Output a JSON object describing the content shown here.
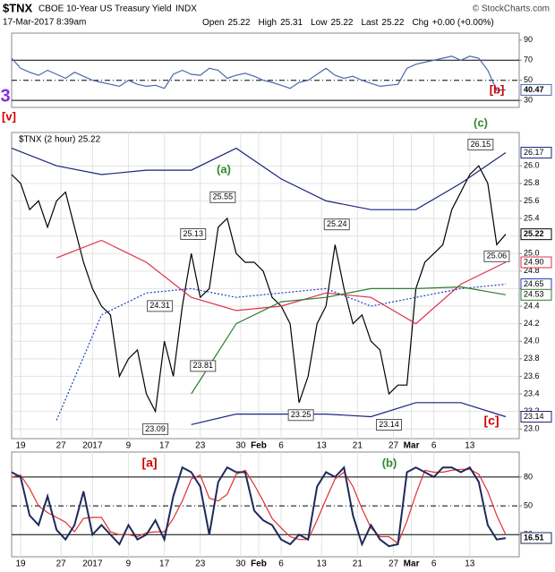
{
  "header": {
    "symbol": "$TNX",
    "name": "CBOE 10-Year US Treasury Yield",
    "exchange": "INDX",
    "source": "© StockCharts.com",
    "date": "17-Mar-2017 8:39am",
    "quote": [
      {
        "label": "Open",
        "value": 25.22
      },
      {
        "label": "High",
        "value": 25.31
      },
      {
        "label": "Low",
        "value": 25.22
      },
      {
        "label": "Last",
        "value": 25.22
      },
      {
        "label": "Chg",
        "value": "+0.00 (+0.00%)"
      }
    ]
  },
  "chart_data": [
    {
      "type": "line",
      "xlim": [
        0,
        113
      ],
      "ylim": [
        23,
        97
      ],
      "yticks": [
        30,
        50,
        70,
        90
      ],
      "levels": [
        30,
        70
      ],
      "midline": 50,
      "x": [
        0,
        2,
        4,
        6,
        8,
        10,
        12,
        14,
        16,
        18,
        20,
        22,
        24,
        26,
        28,
        30,
        32,
        34,
        36,
        38,
        40,
        42,
        44,
        46,
        48,
        50,
        52,
        54,
        56,
        58,
        60,
        62,
        64,
        66,
        68,
        70,
        72,
        74,
        76,
        78,
        80,
        82,
        84,
        86,
        88,
        90,
        92,
        94,
        96,
        98,
        100,
        102,
        104,
        106,
        108,
        110
      ],
      "series": [
        {
          "color": "#4a68a8",
          "show_last": true,
          "values": [
            72,
            62,
            58,
            55,
            60,
            56,
            52,
            58,
            54,
            50,
            48,
            46,
            44,
            50,
            46,
            44,
            45,
            42,
            56,
            60,
            56,
            55,
            62,
            60,
            52,
            55,
            57,
            54,
            50,
            48,
            45,
            42,
            48,
            50,
            56,
            62,
            55,
            52,
            54,
            50,
            47,
            44,
            45,
            46,
            62,
            66,
            68,
            70,
            72,
            74,
            70,
            74,
            72,
            60,
            40,
            40.47
          ]
        }
      ],
      "annotations": [
        {
          "text": "3",
          "color": "#8a2be2"
        },
        {
          "text": "[v]",
          "color": "#d00000"
        },
        {
          "text": "[b]",
          "color": "#d00000"
        }
      ]
    },
    {
      "type": "line",
      "legend": "$TNX (2 hour) 25.22",
      "xlim": [
        0,
        113
      ],
      "ylim": [
        22.89,
        26.38
      ],
      "yticks": [
        {
          "value": 23,
          "label": "23.0"
        },
        23.2,
        23.4,
        23.6,
        23.8,
        {
          "value": 24,
          "label": "24.0"
        },
        24.2,
        24.4,
        24.6,
        24.8,
        {
          "value": 25,
          "label": "25.0"
        },
        25.2,
        25.4,
        25.6,
        25.8,
        {
          "value": 26,
          "label": "26.0"
        }
      ],
      "xticks": [
        {
          "value": 2,
          "label": "19"
        },
        {
          "value": 11,
          "label": "27"
        },
        {
          "value": 18,
          "label": "2017"
        },
        {
          "value": 26,
          "label": "9"
        },
        {
          "value": 34,
          "label": "17"
        },
        {
          "value": 42,
          "label": "23"
        },
        {
          "value": 51,
          "label": "30"
        },
        {
          "value": 55,
          "label": "Feb"
        },
        {
          "value": 60,
          "label": "6"
        },
        {
          "value": 69,
          "label": "13"
        },
        {
          "value": 77,
          "label": "21"
        },
        {
          "value": 85,
          "label": "27"
        },
        {
          "value": 89,
          "label": "Mar"
        },
        {
          "value": 94,
          "label": "6"
        },
        {
          "value": 102,
          "label": "13"
        }
      ],
      "grid": true,
      "x": [
        0,
        2,
        4,
        6,
        8,
        10,
        12,
        14,
        16,
        18,
        20,
        22,
        24,
        26,
        28,
        30,
        32,
        34,
        36,
        38,
        40,
        42,
        44,
        46,
        48,
        50,
        52,
        54,
        56,
        58,
        60,
        62,
        64,
        66,
        68,
        70,
        72,
        74,
        76,
        78,
        80,
        82,
        84,
        86,
        88,
        90,
        92,
        94,
        96,
        98,
        100,
        102,
        104,
        106,
        108,
        110
      ],
      "series": [
        {
          "color": "#000000",
          "show_last": true,
          "values": [
            25.9,
            25.8,
            25.5,
            25.6,
            25.3,
            25.6,
            25.7,
            25.3,
            24.9,
            24.6,
            24.4,
            24.3,
            23.6,
            23.8,
            23.9,
            23.4,
            23.2,
            24.0,
            23.6,
            24.4,
            25.0,
            24.5,
            24.6,
            25.3,
            25.4,
            25.0,
            24.9,
            24.9,
            24.8,
            24.5,
            24.4,
            24.2,
            23.3,
            23.6,
            24.2,
            24.4,
            25.1,
            24.6,
            24.2,
            24.3,
            24.0,
            23.9,
            23.4,
            23.5,
            23.5,
            24.6,
            24.9,
            25.0,
            25.1,
            25.5,
            25.7,
            25.9,
            26.0,
            25.8,
            25.1,
            25.22
          ]
        },
        {
          "color": "#1a237e",
          "x": [
            0,
            10,
            20,
            30,
            40,
            50,
            60,
            70,
            80,
            90,
            100,
            110
          ],
          "values": [
            26.2,
            26.0,
            25.9,
            25.95,
            25.95,
            26.2,
            25.85,
            25.6,
            25.5,
            25.5,
            25.8,
            26.15
          ],
          "last_label": "26.17"
        },
        {
          "color": "#1a237e",
          "x": [
            0,
            10,
            20,
            30,
            40,
            50,
            60,
            70,
            80,
            90,
            100,
            110
          ],
          "values": [
            null,
            null,
            null,
            null,
            23.05,
            23.17,
            23.17,
            23.17,
            23.14,
            23.3,
            23.3,
            23.14
          ],
          "last_label": "23.14"
        },
        {
          "color": "#e0304a",
          "x": [
            0,
            10,
            20,
            30,
            40,
            50,
            60,
            70,
            80,
            90,
            100,
            110
          ],
          "values": [
            null,
            24.95,
            25.15,
            24.9,
            24.5,
            24.35,
            24.4,
            24.55,
            24.5,
            24.2,
            24.65,
            24.9
          ],
          "last_label": "24.90"
        },
        {
          "color": "#1f3fbf",
          "dash": true,
          "x": [
            0,
            10,
            20,
            30,
            40,
            50,
            60,
            70,
            80,
            90,
            100,
            110
          ],
          "values": [
            null,
            23.1,
            24.3,
            24.55,
            24.6,
            24.5,
            24.55,
            24.6,
            24.4,
            24.5,
            24.6,
            24.65
          ],
          "last_label": "24.65"
        },
        {
          "color": "#2e7d32",
          "x": [
            0,
            10,
            20,
            30,
            40,
            50,
            60,
            70,
            80,
            90,
            100,
            110
          ],
          "values": [
            null,
            null,
            null,
            null,
            23.4,
            24.2,
            24.45,
            24.5,
            24.6,
            24.6,
            24.62,
            24.53
          ],
          "last_label": "24.53"
        }
      ],
      "point_labels": [
        {
          "x": 104.4,
          "y": 26.15,
          "position": "above"
        },
        {
          "x": 47,
          "y": 25.55,
          "position": "above"
        },
        {
          "x": 72.4,
          "y": 25.24,
          "position": "above"
        },
        {
          "x": 40.4,
          "y": 25.13,
          "position": "above"
        },
        {
          "x": 33,
          "y": 24.31,
          "position": "above"
        },
        {
          "x": 42.6,
          "y": 23.81,
          "position": "below"
        },
        {
          "x": 64.4,
          "y": 23.25,
          "position": "below"
        },
        {
          "x": 84,
          "y": 23.14,
          "position": "below"
        },
        {
          "x": 32,
          "y": 23.09,
          "position": "below"
        },
        {
          "x": 108,
          "y": 25.06,
          "position": "below"
        }
      ],
      "annotations": [
        {
          "text": "(a)",
          "color": "#2e8b2e"
        },
        {
          "text": "(c)",
          "color": "#2e8b2e"
        },
        {
          "text": "[c]",
          "color": "#d00000"
        }
      ]
    },
    {
      "type": "line",
      "xlim": [
        0,
        113
      ],
      "ylim": [
        -3,
        106
      ],
      "yticks": [
        20,
        50,
        80
      ],
      "levels": [
        20,
        80
      ],
      "midline": 50,
      "xticks": [
        {
          "value": 2,
          "label": "19"
        },
        {
          "value": 11,
          "label": "27"
        },
        {
          "value": 18,
          "label": "2017"
        },
        {
          "value": 26,
          "label": "9"
        },
        {
          "value": 34,
          "label": "17"
        },
        {
          "value": 42,
          "label": "23"
        },
        {
          "value": 51,
          "label": "30"
        },
        {
          "value": 55,
          "label": "Feb"
        },
        {
          "value": 60,
          "label": "6"
        },
        {
          "value": 69,
          "label": "13"
        },
        {
          "value": 77,
          "label": "21"
        },
        {
          "value": 85,
          "label": "27"
        },
        {
          "value": 89,
          "label": "Mar"
        },
        {
          "value": 94,
          "label": "6"
        },
        {
          "value": 102,
          "label": "13"
        }
      ],
      "x": [
        0,
        2,
        4,
        6,
        8,
        10,
        12,
        14,
        16,
        18,
        20,
        22,
        24,
        26,
        28,
        30,
        32,
        34,
        36,
        38,
        40,
        42,
        44,
        46,
        48,
        50,
        52,
        54,
        56,
        58,
        60,
        62,
        64,
        66,
        68,
        70,
        72,
        74,
        76,
        78,
        80,
        82,
        84,
        86,
        88,
        90,
        92,
        94,
        96,
        98,
        100,
        102,
        104,
        106,
        108,
        110
      ],
      "series": [
        {
          "color": "#e03030",
          "values": [
            80,
            82,
            68,
            50,
            43,
            38,
            33,
            23,
            37,
            38,
            38,
            23,
            20,
            20,
            18,
            22,
            23,
            23,
            37,
            55,
            78,
            82,
            58,
            55,
            62,
            83,
            87,
            72,
            55,
            37,
            27,
            18,
            15,
            15,
            35,
            57,
            78,
            85,
            70,
            47,
            27,
            18,
            18,
            11,
            34,
            62,
            87,
            85,
            85,
            87,
            88,
            88,
            83,
            65,
            40,
            20
          ]
        },
        {
          "color": "#1e2a5a",
          "width": 2,
          "show_last": true,
          "values": [
            85,
            80,
            40,
            30,
            60,
            25,
            15,
            30,
            65,
            20,
            30,
            20,
            10,
            30,
            15,
            20,
            35,
            15,
            60,
            90,
            85,
            70,
            20,
            75,
            90,
            85,
            85,
            45,
            35,
            30,
            15,
            10,
            20,
            15,
            70,
            85,
            80,
            90,
            40,
            10,
            30,
            15,
            8,
            10,
            85,
            90,
            85,
            80,
            90,
            90,
            85,
            90,
            75,
            30,
            15,
            16.51
          ]
        }
      ],
      "annotations": [
        {
          "text": "[a]",
          "color": "#d00000"
        },
        {
          "text": "(b)",
          "color": "#2e8b2e"
        }
      ]
    }
  ]
}
